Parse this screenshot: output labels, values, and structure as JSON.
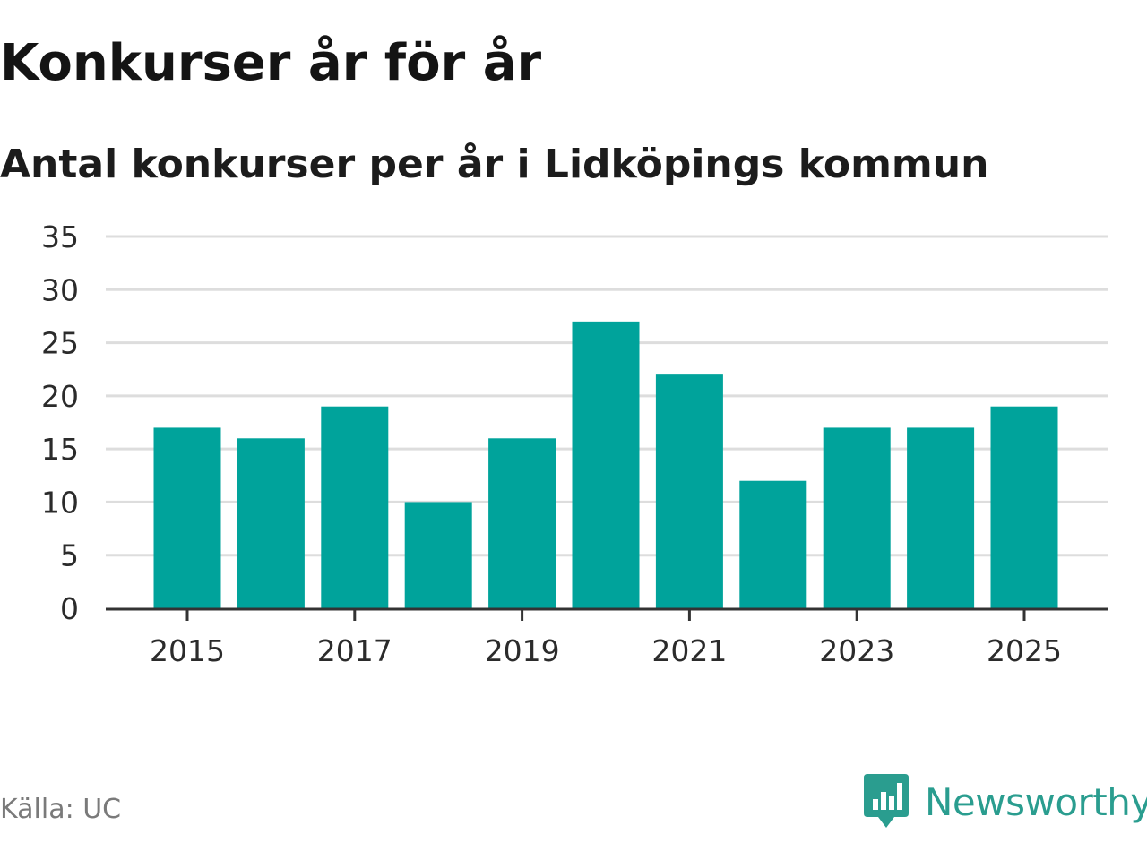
{
  "title": "Konkurser år för år",
  "subtitle": "Antal konkurser per år i Lidköpings kommun",
  "source": "Källa: UC",
  "brand": "Newsworthy",
  "colors": {
    "bar": "#00a39b",
    "grid": "#dddddd",
    "axis": "#333333",
    "brand": "#2a9d8f"
  },
  "chart_data": {
    "type": "bar",
    "title": "Konkurser år för år",
    "subtitle": "Antal konkurser per år i Lidköpings kommun",
    "xlabel": "",
    "ylabel": "",
    "categories": [
      "2015",
      "2016",
      "2017",
      "2018",
      "2019",
      "2020",
      "2021",
      "2022",
      "2023",
      "2024",
      "2025"
    ],
    "values": [
      17,
      16,
      19,
      10,
      16,
      27,
      22,
      12,
      17,
      17,
      19
    ],
    "x_tick_labels": [
      "2015",
      "2017",
      "2019",
      "2021",
      "2023",
      "2025"
    ],
    "y_ticks": [
      0,
      5,
      10,
      15,
      20,
      25,
      30,
      35
    ],
    "ylim": [
      0,
      35
    ],
    "grid": true
  }
}
